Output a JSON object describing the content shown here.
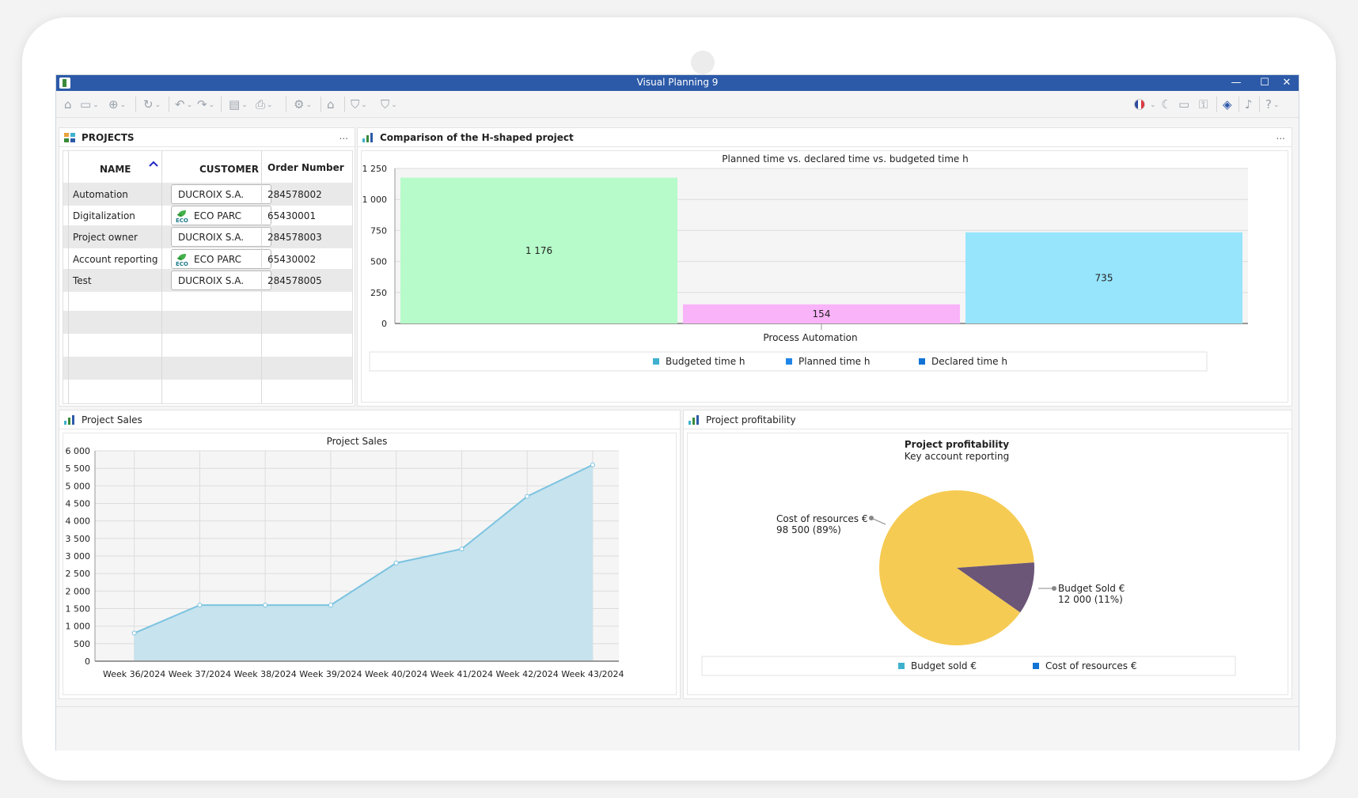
{
  "window": {
    "title": "Visual Planning 9",
    "controls": {
      "minimize": "—",
      "maximize": "☐",
      "close": "✕"
    }
  },
  "toolbar": {
    "icons": [
      "home-icon",
      "save-icon",
      "add-icon",
      "refresh-icon",
      "undo-icon",
      "redo-icon",
      "export-icon",
      "print-icon",
      "settings-icon",
      "bank-icon",
      "filter-icon",
      "filter-alt-icon",
      "language-flag-icon",
      "night-mode-icon",
      "window-icon",
      "key-icon",
      "chat-icon",
      "bell-icon",
      "help-icon"
    ]
  },
  "projects_panel": {
    "title": "PROJECTS",
    "more": "...",
    "columns": {
      "name": "NAME",
      "customer": "CUSTOMER",
      "order": "Order Number"
    },
    "rows": [
      {
        "name": "Automation",
        "customer": "DUCROIX S.A.",
        "order": "284578002",
        "eco": false
      },
      {
        "name": "Digitalization",
        "customer": "ECO PARC",
        "order": "65430001",
        "eco": true
      },
      {
        "name": "Project owner",
        "customer": "DUCROIX S.A.",
        "order": "284578003",
        "eco": false
      },
      {
        "name": "Account reporting",
        "customer": "ECO PARC",
        "order": "65430002",
        "eco": true
      },
      {
        "name": "Test",
        "customer": "DUCROIX S.A.",
        "order": "284578005",
        "eco": false
      }
    ],
    "eco_label": "ECO"
  },
  "comparison_panel": {
    "title": "Comparison of the H-shaped project",
    "more": "..."
  },
  "sales_panel": {
    "title": "Project Sales"
  },
  "profit_panel": {
    "title": "Project profitability"
  },
  "chart_data": [
    {
      "type": "bar",
      "title": "Planned time vs. declared time vs. budgeted time h",
      "categories": [
        "Process Automation"
      ],
      "series": [
        {
          "name": "Budgeted time h",
          "values": [
            1176
          ],
          "color": "#b6fbc9",
          "legend_color": "#3fb1cf"
        },
        {
          "name": "Planned time h",
          "values": [
            154
          ],
          "color": "#f9b3f9",
          "legend_color": "#1f86e8"
        },
        {
          "name": "Declared time h",
          "values": [
            735
          ],
          "color": "#97e5fd",
          "legend_color": "#1273d6"
        }
      ],
      "data_labels": [
        "1 176",
        "154",
        "735"
      ],
      "ylim": [
        0,
        1250
      ],
      "yticks": [
        0,
        250,
        500,
        750,
        1000,
        1250
      ],
      "ytick_labels": [
        "0",
        "250",
        "500",
        "750",
        "1 000",
        "1 250"
      ],
      "grid": true,
      "legend": "bottom"
    },
    {
      "type": "area",
      "title": "Project Sales",
      "x": [
        "Week 36/2024",
        "Week 37/2024",
        "Week 38/2024",
        "Week 39/2024",
        "Week 40/2024",
        "Week 41/2024",
        "Week 42/2024",
        "Week 43/2024"
      ],
      "series": [
        {
          "values": [
            800,
            1600,
            1600,
            1600,
            2800,
            3200,
            4700,
            5600
          ],
          "color": "#7cc3e0",
          "fill": "#c6e3ee"
        }
      ],
      "ylim": [
        0,
        6000
      ],
      "yticks": [
        0,
        500,
        1000,
        1500,
        2000,
        2500,
        3000,
        3500,
        4000,
        4500,
        5000,
        5500,
        6000
      ],
      "ytick_labels": [
        "0",
        "500",
        "1 000",
        "1 500",
        "2 000",
        "2 500",
        "3 000",
        "3 500",
        "4 000",
        "4 500",
        "5 000",
        "5 500",
        "6 000"
      ],
      "grid": true
    },
    {
      "type": "pie",
      "title": "Project profitability",
      "subtitle": "Key account reporting",
      "slices": [
        {
          "label": "Budget Sold €",
          "value": 12000,
          "percent": 11,
          "value_text": "12 000 (11%)",
          "color": "#6b5677"
        },
        {
          "label": "Cost of resources  €",
          "value": 98500,
          "percent": 89,
          "value_text": "98 500 (89%)",
          "color": "#f6cb53"
        }
      ],
      "legend": [
        {
          "label": "Budget sold €",
          "color": "#3fb1cf"
        },
        {
          "label": "Cost of resources €",
          "color": "#1273d6"
        }
      ]
    }
  ]
}
